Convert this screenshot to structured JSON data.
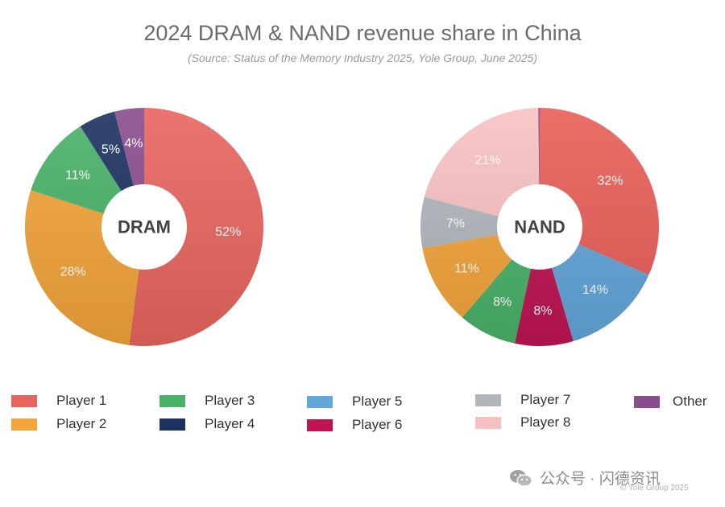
{
  "chart_data": [
    {
      "type": "pie",
      "center_label": "DRAM",
      "slices": [
        {
          "name": "Player 1",
          "value": 52,
          "label": "52%",
          "color": "#e8655e"
        },
        {
          "name": "Player 2",
          "value": 28,
          "label": "28%",
          "color": "#f3a43a"
        },
        {
          "name": "Player 3",
          "value": 11,
          "label": "11%",
          "color": "#49b268"
        },
        {
          "name": "Player 4",
          "value": 5,
          "label": "5%",
          "color": "#1c3260"
        },
        {
          "name": "Other",
          "value": 4,
          "label": "4%",
          "color": "#8a4d8e"
        }
      ]
    },
    {
      "type": "pie",
      "center_label": "NAND",
      "slices": [
        {
          "name": "Player 1",
          "value": 32,
          "label": "32%",
          "color": "#e95f58"
        },
        {
          "name": "Player 5",
          "value": 14,
          "label": "14%",
          "color": "#63a6da"
        },
        {
          "name": "Player 6",
          "value": 8,
          "label": "8%",
          "color": "#be1552"
        },
        {
          "name": "Player 3",
          "value": 8,
          "label": "8%",
          "color": "#49b268"
        },
        {
          "name": "Player 2",
          "value": 11,
          "label": "11%",
          "color": "#f3a43a"
        },
        {
          "name": "Player 7",
          "value": 7,
          "label": "7%",
          "color": "#b1b6bc"
        },
        {
          "name": "Player 8",
          "value": 21,
          "label": "21%",
          "color": "#f8c1c1"
        },
        {
          "name": "Other",
          "value": 0.2,
          "label": "",
          "color": "#8a4d8e"
        }
      ]
    }
  ],
  "title": "2024 DRAM & NAND revenue share in China",
  "subtitle": "(Source: Status of the Memory Industry 2025, Yole Group, June 2025)",
  "legend": [
    {
      "name": "Player 1",
      "color": "#e8655e"
    },
    {
      "name": "Player 2",
      "color": "#f3a43a"
    },
    {
      "name": "Player 3",
      "color": "#49b268"
    },
    {
      "name": "Player 4",
      "color": "#1c3260"
    },
    {
      "name": "Player 5",
      "color": "#63a6da"
    },
    {
      "name": "Player 6",
      "color": "#be1552"
    },
    {
      "name": "Player 7",
      "color": "#b1b6bc"
    },
    {
      "name": "Player 8",
      "color": "#f8c1c1"
    },
    {
      "name": "Other",
      "color": "#8a4d8e"
    }
  ],
  "watermark": "公众号 · 闪德资讯",
  "copyright": "© Yole Group 2025"
}
